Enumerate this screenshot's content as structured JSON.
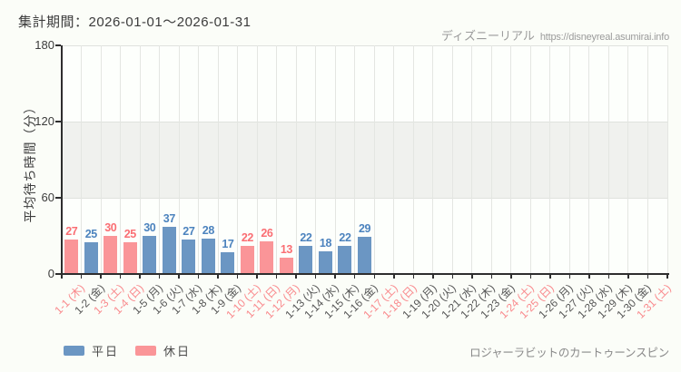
{
  "header": {
    "period_label": "集計期間：2026-01-01～2026-01-31",
    "watermark_site": "ディズニーリアル",
    "watermark_url": "https://disneyreal.asumirai.info"
  },
  "footer": {
    "attraction_name": "ロジャーラビットのカートゥーンスピン"
  },
  "colors": {
    "weekday_bar": "#6b96c3",
    "holiday_bar": "#fa9598",
    "weekday_label": "#4c83be",
    "holiday_label": "#fa6e73",
    "weekday_tick": "#565656",
    "holiday_tick": "#f9898c",
    "band": "#f0f1ee",
    "axis": "#2e2e2e"
  },
  "chart_data": {
    "type": "bar",
    "title": "集計期間：2026-01-01～2026-01-31",
    "xlabel": "",
    "ylabel": "平均待ち時間（分）",
    "ylim": [
      0,
      180
    ],
    "yticks": [
      0,
      60,
      120,
      180
    ],
    "shaded_band": [
      60,
      120
    ],
    "grid": true,
    "legend_position": "bottom-left",
    "categories": [
      "1-1 (木)",
      "1-2 (金)",
      "1-3 (土)",
      "1-4 (日)",
      "1-5 (月)",
      "1-6 (火)",
      "1-7 (水)",
      "1-8 (木)",
      "1-9 (金)",
      "1-10 (土)",
      "1-11 (日)",
      "1-12 (月)",
      "1-13 (火)",
      "1-14 (水)",
      "1-15 (木)",
      "1-16 (金)",
      "1-17 (土)",
      "1-18 (日)",
      "1-19 (月)",
      "1-20 (火)",
      "1-21 (水)",
      "1-22 (木)",
      "1-23 (金)",
      "1-24 (土)",
      "1-25 (日)",
      "1-26 (月)",
      "1-27 (火)",
      "1-28 (水)",
      "1-29 (木)",
      "1-30 (金)",
      "1-31 (土)"
    ],
    "values": [
      27,
      25,
      30,
      25,
      30,
      37,
      27,
      28,
      17,
      22,
      26,
      13,
      22,
      18,
      22,
      29,
      null,
      null,
      null,
      null,
      null,
      null,
      null,
      null,
      null,
      null,
      null,
      null,
      null,
      null,
      null
    ],
    "day_types": [
      "holiday",
      "weekday",
      "holiday",
      "holiday",
      "weekday",
      "weekday",
      "weekday",
      "weekday",
      "weekday",
      "holiday",
      "holiday",
      "holiday",
      "weekday",
      "weekday",
      "weekday",
      "weekday",
      "holiday",
      "holiday",
      "weekday",
      "weekday",
      "weekday",
      "weekday",
      "weekday",
      "holiday",
      "holiday",
      "weekday",
      "weekday",
      "weekday",
      "weekday",
      "weekday",
      "holiday"
    ],
    "legend": [
      {
        "label": "平日",
        "type": "weekday"
      },
      {
        "label": "休日",
        "type": "holiday"
      }
    ]
  }
}
